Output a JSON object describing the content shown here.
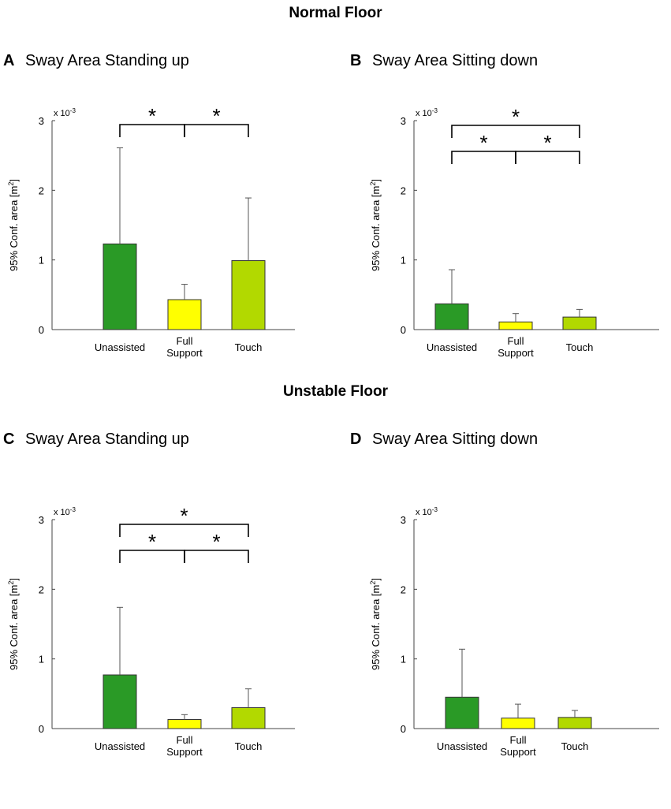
{
  "sections": {
    "normal_title": "Normal Floor",
    "unstable_title": "Unstable Floor"
  },
  "colors": {
    "unassisted": "#2a9a26",
    "full_support": "#ffff00",
    "touch": "#b2d900",
    "axis": "#444444"
  },
  "chart_data": [
    {
      "type": "bar",
      "panel": "A",
      "title": "Sway Area Standing up",
      "ylabel": "95% Conf. area [m²]",
      "ylabel_main": "95% Conf. area [m",
      "ylabel_sup": "2",
      "ylabel_tail": "]",
      "scale_base": "x 10",
      "scale_exp": "-3",
      "ylim": [
        0,
        3
      ],
      "yticks": [
        "0",
        "1",
        "2",
        "3"
      ],
      "categories": [
        "Unassisted",
        "Full|Support",
        "Touch"
      ],
      "values": [
        1.23,
        0.43,
        0.99
      ],
      "errors": [
        1.38,
        0.22,
        0.9
      ],
      "significance": [
        {
          "from": 0,
          "to": 1,
          "label": "*",
          "level": 0
        },
        {
          "from": 1,
          "to": 2,
          "label": "*",
          "level": 0
        }
      ]
    },
    {
      "type": "bar",
      "panel": "B",
      "title": "Sway Area Sitting down",
      "ylabel": "95% Conf. area [m²]",
      "ylabel_main": "95% Conf. area [m",
      "ylabel_sup": "2",
      "ylabel_tail": "]",
      "scale_base": "x 10",
      "scale_exp": "-3",
      "ylim": [
        0,
        3
      ],
      "yticks": [
        "0",
        "1",
        "2",
        "3"
      ],
      "categories": [
        "Unassisted",
        "Full|Support",
        "Touch"
      ],
      "values": [
        0.37,
        0.11,
        0.18
      ],
      "errors": [
        0.49,
        0.12,
        0.11
      ],
      "significance": [
        {
          "from": 0,
          "to": 2,
          "label": "*",
          "level": 1
        },
        {
          "from": 0,
          "to": 1,
          "label": "*",
          "level": 0
        },
        {
          "from": 1,
          "to": 2,
          "label": "*",
          "level": 0
        }
      ]
    },
    {
      "type": "bar",
      "panel": "C",
      "title": "Sway Area Standing up",
      "ylabel": "95% Conf. area [m²]",
      "ylabel_main": "95% Conf. area [m",
      "ylabel_sup": "2",
      "ylabel_tail": "]",
      "scale_base": "x 10",
      "scale_exp": "-3",
      "ylim": [
        0,
        3
      ],
      "yticks": [
        "0",
        "1",
        "2",
        "3"
      ],
      "categories": [
        "Unassisted",
        "Full|Support",
        "Touch"
      ],
      "values": [
        0.77,
        0.13,
        0.3
      ],
      "errors": [
        0.97,
        0.07,
        0.27
      ],
      "significance": [
        {
          "from": 0,
          "to": 2,
          "label": "*",
          "level": 1
        },
        {
          "from": 0,
          "to": 1,
          "label": "*",
          "level": 0
        },
        {
          "from": 1,
          "to": 2,
          "label": "*",
          "level": 0
        }
      ]
    },
    {
      "type": "bar",
      "panel": "D",
      "title": "Sway Area Sitting down",
      "ylabel": "95% Conf. area [m²]",
      "ylabel_main": "95% Conf. area [m",
      "ylabel_sup": "2",
      "ylabel_tail": "]",
      "scale_base": "x 10",
      "scale_exp": "-3",
      "ylim": [
        0,
        3
      ],
      "yticks": [
        "0",
        "1",
        "2",
        "3"
      ],
      "categories": [
        "Unassisted",
        "Full|Support",
        "Touch"
      ],
      "values": [
        0.45,
        0.15,
        0.16
      ],
      "errors": [
        0.69,
        0.2,
        0.1
      ],
      "significance": []
    }
  ]
}
